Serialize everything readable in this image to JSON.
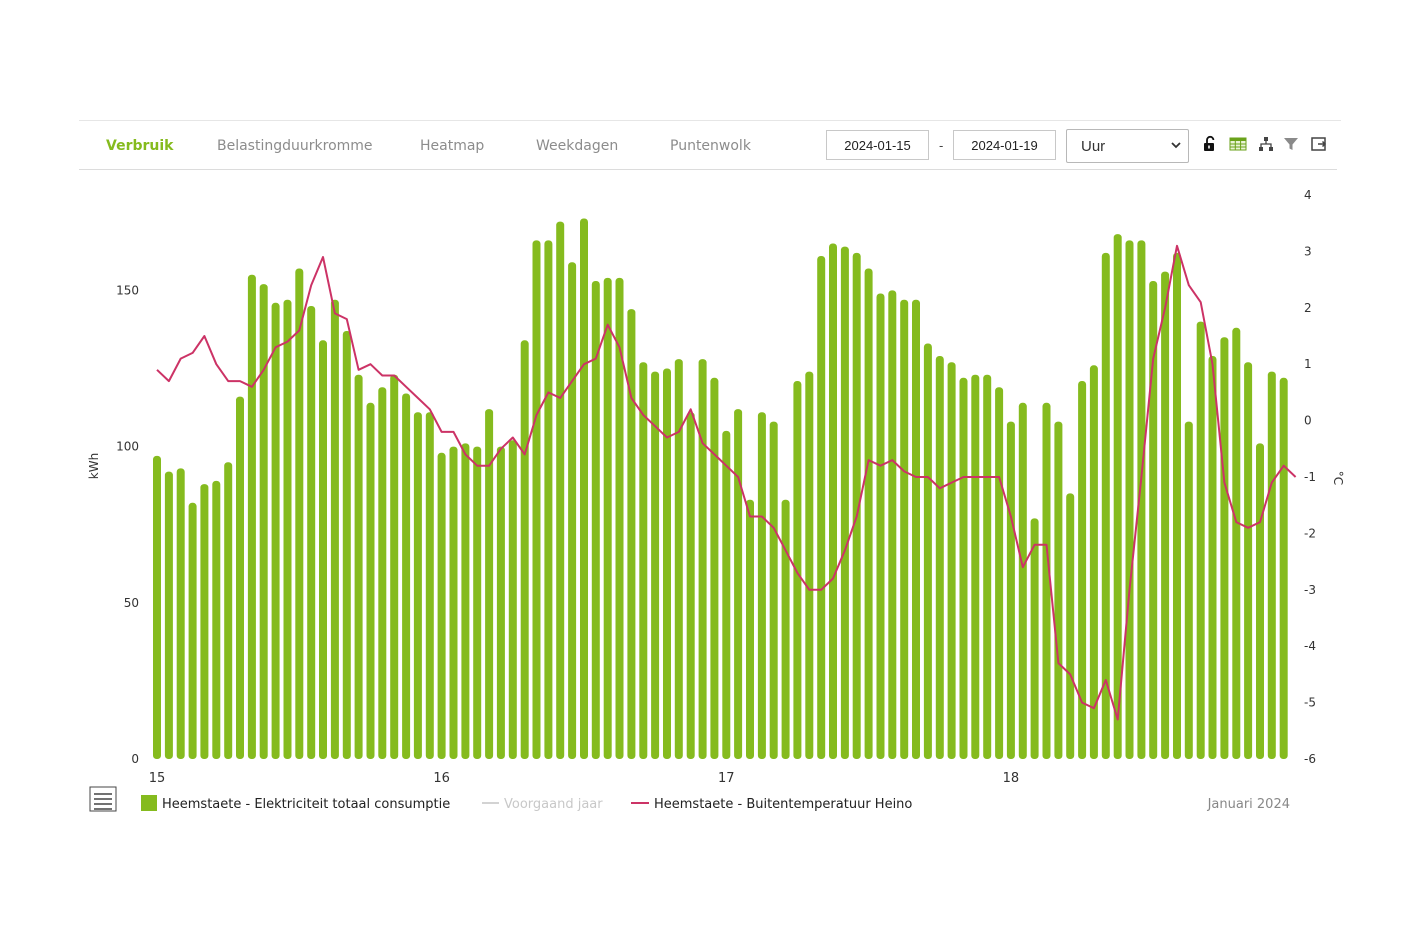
{
  "tabs": [
    {
      "label": "Verbruik",
      "active": true
    },
    {
      "label": "Belastingduurkromme",
      "active": false
    },
    {
      "label": "Heatmap",
      "active": false
    },
    {
      "label": "Weekdagen",
      "active": false
    },
    {
      "label": "Puntenwolk",
      "active": false
    }
  ],
  "date_from": "2024-01-15",
  "date_separator": "-",
  "date_to": "2024-01-19",
  "interval_select": {
    "value": "Uur",
    "options": [
      "Uur"
    ]
  },
  "toolbar_icons": [
    "unlock-icon",
    "table-icon",
    "hierarchy-icon",
    "filter-icon",
    "export-icon"
  ],
  "colors": {
    "accent": "#85bb1e",
    "bars": "#85bb1e",
    "temperature": "#cc3366",
    "previous_year": "#d3d3d3"
  },
  "period_label": "Januari 2024",
  "menu_icon": "hamburger-menu-icon",
  "chart_data": {
    "type": "bar",
    "x_label_each_day": [
      "15",
      "16",
      "17",
      "18"
    ],
    "ylabel": "kWh",
    "ylim": [
      0,
      185
    ],
    "yticks": [
      0,
      50,
      100,
      150
    ],
    "y2label": "°C",
    "y2lim": [
      -6,
      4
    ],
    "y2ticks": [
      -6,
      -5,
      -4,
      -3,
      -2,
      -1,
      0,
      1,
      2,
      3,
      4
    ],
    "grid": false,
    "legend_position": "bottom",
    "series": [
      {
        "name": "Heemstaete - Elektriciteit totaal consumptie",
        "type": "bar",
        "axis": "left",
        "values": [
          97,
          92,
          93,
          82,
          88,
          89,
          95,
          116,
          155,
          152,
          146,
          147,
          157,
          145,
          134,
          147,
          137,
          123,
          114,
          119,
          123,
          117,
          111,
          111,
          98,
          100,
          101,
          100,
          112,
          100,
          102,
          134,
          166,
          166,
          172,
          159,
          173,
          153,
          154,
          154,
          144,
          127,
          124,
          125,
          128,
          111,
          128,
          122,
          105,
          112,
          83,
          111,
          108,
          83,
          121,
          124,
          161,
          165,
          164,
          162,
          157,
          149,
          150,
          147,
          147,
          133,
          129,
          127,
          122,
          123,
          123,
          119,
          108,
          114,
          77,
          114,
          108,
          85,
          121,
          126,
          162,
          168,
          166,
          166,
          153,
          156,
          162,
          108,
          140,
          129,
          135,
          138,
          127,
          101,
          124,
          122
        ]
      },
      {
        "name": "Voorgaand jaar",
        "type": "line",
        "axis": "left",
        "values": []
      },
      {
        "name": "Heemstaete - Buitentemperatuur Heino",
        "type": "line",
        "axis": "right",
        "values": [
          0.9,
          0.7,
          1.1,
          1.2,
          1.5,
          1.0,
          0.7,
          0.7,
          0.6,
          0.9,
          1.3,
          1.4,
          1.6,
          2.4,
          2.9,
          1.9,
          1.8,
          0.9,
          1.0,
          0.8,
          0.8,
          0.6,
          0.4,
          0.2,
          -0.2,
          -0.2,
          -0.6,
          -0.8,
          -0.8,
          -0.5,
          -0.3,
          -0.6,
          0.1,
          0.5,
          0.4,
          0.7,
          1.0,
          1.1,
          1.7,
          1.3,
          0.4,
          0.1,
          -0.1,
          -0.3,
          -0.2,
          0.2,
          -0.4,
          -0.6,
          -0.8,
          -1.0,
          -1.7,
          -1.7,
          -1.9,
          -2.3,
          -2.7,
          -3.0,
          -3.0,
          -2.8,
          -2.3,
          -1.7,
          -0.7,
          -0.8,
          -0.7,
          -0.9,
          -1.0,
          -1.0,
          -1.2,
          -1.1,
          -1.0,
          -1.0,
          -1.0,
          -1.0,
          -1.7,
          -2.6,
          -2.2,
          -2.2,
          -4.3,
          -4.5,
          -5.0,
          -5.1,
          -4.6,
          -5.3,
          -3.0,
          -1.0,
          1.1,
          2.0,
          3.1,
          2.4,
          2.1,
          1.0,
          -1.1,
          -1.8,
          -1.9,
          -1.8,
          -1.1,
          -0.8,
          -1.0
        ]
      }
    ]
  }
}
